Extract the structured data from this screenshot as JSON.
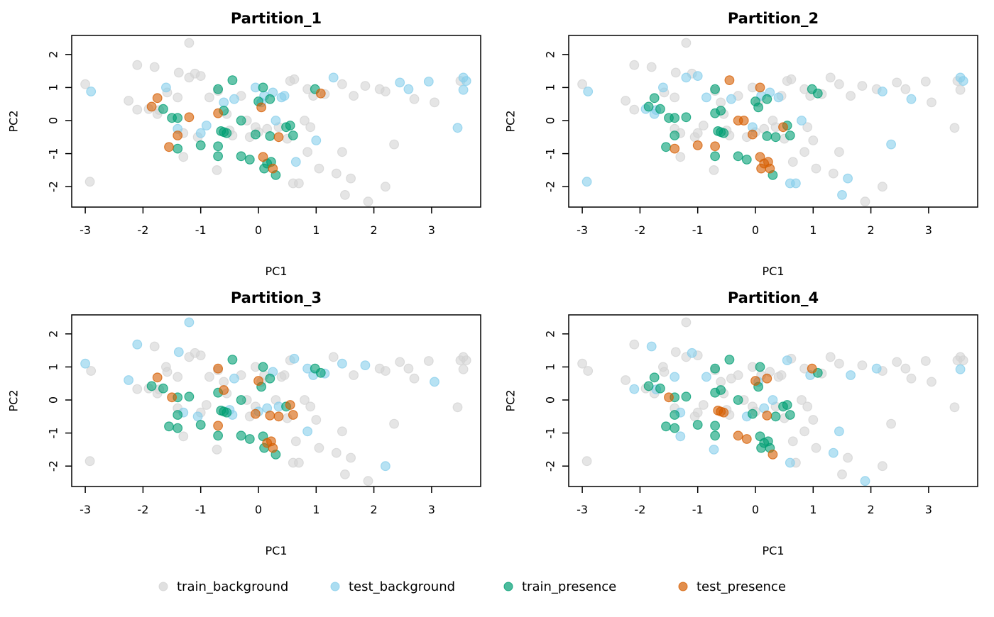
{
  "chart_data": {
    "type": "scatter",
    "layout": "2x2 facets",
    "xlabel": "PC1",
    "ylabel": "PC2",
    "xlim": [
      -3.2,
      3.9
    ],
    "ylim": [
      -2.6,
      2.6
    ],
    "xticks": [
      -3,
      -2,
      -1,
      0,
      1,
      2,
      3
    ],
    "yticks": [
      -2,
      -1,
      0,
      1,
      2
    ],
    "grid": false,
    "legend_position": "bottom",
    "classes": [
      {
        "name": "train_background",
        "color": "#D3D3D3"
      },
      {
        "name": "test_background",
        "color": "#87CEEB"
      },
      {
        "name": "train_presence",
        "color": "#009E73"
      },
      {
        "name": "test_presence",
        "color": "#D55E00"
      }
    ],
    "points": [
      [
        -3.0,
        1.1
      ],
      [
        -2.9,
        0.88
      ],
      [
        -2.92,
        -1.85
      ],
      [
        -2.25,
        0.6
      ],
      [
        -2.1,
        1.68
      ],
      [
        -2.1,
        0.33
      ],
      [
        -1.9,
        0.35
      ],
      [
        -1.8,
        1.62
      ],
      [
        -1.75,
        0.2
      ],
      [
        -1.72,
        0.32
      ],
      [
        -1.6,
        1.0
      ],
      [
        -1.58,
        0.85
      ],
      [
        -1.4,
        0.7
      ],
      [
        -1.4,
        -0.25
      ],
      [
        -1.38,
        1.45
      ],
      [
        -1.3,
        -0.38
      ],
      [
        -1.3,
        -1.1
      ],
      [
        -1.2,
        2.35
      ],
      [
        -1.2,
        1.3
      ],
      [
        -1.1,
        1.42
      ],
      [
        -1.05,
        -0.5
      ],
      [
        -1.0,
        1.35
      ],
      [
        -1.0,
        -0.38
      ],
      [
        -0.9,
        -0.15
      ],
      [
        -0.85,
        0.7
      ],
      [
        -0.72,
        -1.5
      ],
      [
        -0.7,
        0.9
      ],
      [
        -0.6,
        0.55
      ],
      [
        -0.55,
        0.2
      ],
      [
        -0.5,
        -0.3
      ],
      [
        -0.45,
        -0.45
      ],
      [
        -0.42,
        0.65
      ],
      [
        -0.3,
        0.75
      ],
      [
        -0.2,
        0.0
      ],
      [
        -0.15,
        -0.5
      ],
      [
        -0.05,
        1.0
      ],
      [
        -0.05,
        -0.2
      ],
      [
        0.0,
        -0.35
      ],
      [
        0.05,
        0.55
      ],
      [
        0.1,
        0.75
      ],
      [
        0.15,
        -0.25
      ],
      [
        0.25,
        0.85
      ],
      [
        0.3,
        0.0
      ],
      [
        0.35,
        -0.2
      ],
      [
        0.4,
        0.7
      ],
      [
        0.45,
        0.75
      ],
      [
        0.5,
        -0.55
      ],
      [
        0.55,
        1.2
      ],
      [
        0.6,
        -1.9
      ],
      [
        0.62,
        1.25
      ],
      [
        0.65,
        -1.25
      ],
      [
        0.7,
        -1.9
      ],
      [
        0.8,
        0.0
      ],
      [
        0.85,
        0.95
      ],
      [
        0.85,
        -0.95
      ],
      [
        0.9,
        -0.2
      ],
      [
        0.95,
        0.75
      ],
      [
        1.0,
        -0.6
      ],
      [
        1.05,
        -1.45
      ],
      [
        1.15,
        0.8
      ],
      [
        1.3,
        1.3
      ],
      [
        1.35,
        -1.6
      ],
      [
        1.45,
        1.1
      ],
      [
        1.45,
        -0.95
      ],
      [
        1.5,
        -2.25
      ],
      [
        1.6,
        -1.75
      ],
      [
        1.65,
        0.75
      ],
      [
        1.85,
        1.05
      ],
      [
        1.9,
        -2.45
      ],
      [
        2.1,
        0.95
      ],
      [
        2.2,
        0.88
      ],
      [
        2.2,
        -2.0
      ],
      [
        2.35,
        -0.72
      ],
      [
        2.45,
        1.15
      ],
      [
        2.6,
        0.95
      ],
      [
        2.7,
        0.65
      ],
      [
        2.95,
        1.18
      ],
      [
        3.05,
        0.55
      ],
      [
        3.45,
        -0.22
      ],
      [
        3.5,
        1.2
      ],
      [
        3.55,
        1.3
      ],
      [
        3.55,
        0.93
      ],
      [
        3.6,
        1.2
      ],
      [
        -1.85,
        0.42
      ],
      [
        -1.75,
        0.68
      ],
      [
        -1.65,
        0.35
      ],
      [
        -1.5,
        0.08
      ],
      [
        -1.4,
        0.08
      ],
      [
        -1.4,
        -0.45
      ],
      [
        -1.55,
        -0.8
      ],
      [
        -1.4,
        -0.85
      ],
      [
        -1.2,
        0.1
      ],
      [
        -1.0,
        -0.75
      ],
      [
        -0.7,
        0.95
      ],
      [
        -0.7,
        0.22
      ],
      [
        -0.7,
        -0.78
      ],
      [
        -0.7,
        -1.08
      ],
      [
        -0.65,
        -0.32
      ],
      [
        -0.6,
        -0.35
      ],
      [
        -0.6,
        0.3
      ],
      [
        -0.55,
        -0.38
      ],
      [
        -0.45,
        1.22
      ],
      [
        -0.3,
        0.0
      ],
      [
        -0.3,
        -1.08
      ],
      [
        -0.15,
        -1.18
      ],
      [
        -0.05,
        -0.42
      ],
      [
        0.0,
        0.58
      ],
      [
        0.05,
        0.4
      ],
      [
        0.08,
        1.0
      ],
      [
        0.08,
        -1.1
      ],
      [
        0.1,
        -1.45
      ],
      [
        0.15,
        -1.3
      ],
      [
        0.2,
        0.65
      ],
      [
        0.2,
        -0.47
      ],
      [
        0.22,
        -1.25
      ],
      [
        0.25,
        -1.45
      ],
      [
        0.3,
        -1.65
      ],
      [
        0.35,
        -0.5
      ],
      [
        0.48,
        -0.2
      ],
      [
        0.55,
        -0.15
      ],
      [
        0.6,
        -0.45
      ],
      [
        0.98,
        0.95
      ],
      [
        1.08,
        0.82
      ]
    ],
    "panels": [
      {
        "title": "Partition_1",
        "classes": [
          0,
          1,
          0,
          0,
          0,
          0,
          0,
          0,
          0,
          0,
          1,
          0,
          0,
          1,
          0,
          0,
          0,
          0,
          0,
          0,
          0,
          0,
          1,
          1,
          0,
          0,
          0,
          1,
          0,
          0,
          0,
          1,
          0,
          0,
          0,
          1,
          0,
          0,
          1,
          1,
          0,
          1,
          1,
          0,
          1,
          1,
          0,
          0,
          0,
          0,
          1,
          0,
          0,
          0,
          0,
          0,
          0,
          1,
          0,
          0,
          1,
          0,
          0,
          0,
          0,
          0,
          0,
          0,
          0,
          0,
          0,
          0,
          0,
          1,
          1,
          0,
          1,
          0,
          1,
          0,
          1,
          1,
          1,
          3,
          3,
          2,
          2,
          2,
          3,
          3,
          2,
          3,
          2,
          2,
          3,
          2,
          2,
          2,
          2,
          2,
          2,
          2,
          2,
          2,
          2,
          2,
          2,
          3,
          2,
          3,
          2,
          2,
          2,
          2,
          2,
          3,
          2,
          3,
          2,
          2,
          2,
          2,
          3
        ]
      },
      {
        "title": "Partition_2",
        "classes": [
          0,
          1,
          1,
          0,
          0,
          0,
          1,
          0,
          1,
          1,
          1,
          0,
          0,
          0,
          0,
          0,
          0,
          0,
          1,
          0,
          0,
          1,
          0,
          0,
          1,
          0,
          0,
          0,
          0,
          0,
          0,
          1,
          0,
          3,
          0,
          0,
          1,
          0,
          0,
          1,
          0,
          1,
          0,
          0,
          1,
          0,
          0,
          0,
          1,
          0,
          0,
          1,
          1,
          0,
          0,
          0,
          0,
          0,
          0,
          0,
          0,
          0,
          0,
          0,
          1,
          1,
          0,
          0,
          0,
          0,
          1,
          0,
          1,
          0,
          0,
          1,
          0,
          0,
          0,
          0,
          1,
          0,
          1,
          2,
          2,
          2,
          2,
          2,
          2,
          2,
          3,
          2,
          3,
          2,
          2,
          3,
          2,
          2,
          2,
          2,
          2,
          3,
          3,
          2,
          2,
          3,
          2,
          2,
          3,
          3,
          3,
          3,
          2,
          2,
          3,
          3,
          2,
          2,
          3,
          2,
          2,
          2,
          2
        ]
      },
      {
        "title": "Partition_3",
        "classes": [
          1,
          0,
          0,
          1,
          1,
          0,
          0,
          0,
          0,
          0,
          0,
          0,
          0,
          0,
          1,
          1,
          0,
          1,
          0,
          0,
          1,
          0,
          0,
          0,
          0,
          0,
          0,
          0,
          0,
          1,
          1,
          1,
          0,
          0,
          0,
          0,
          0,
          1,
          0,
          0,
          1,
          1,
          0,
          1,
          0,
          0,
          0,
          0,
          0,
          1,
          0,
          0,
          0,
          1,
          1,
          0,
          1,
          0,
          0,
          1,
          0,
          0,
          1,
          0,
          0,
          0,
          0,
          1,
          0,
          0,
          0,
          1,
          0,
          0,
          0,
          0,
          0,
          1,
          0,
          0,
          0,
          0,
          0,
          2,
          3,
          2,
          3,
          2,
          2,
          2,
          2,
          2,
          2,
          3,
          2,
          3,
          2,
          2,
          2,
          3,
          2,
          2,
          2,
          2,
          2,
          3,
          3,
          2,
          2,
          2,
          2,
          3,
          2,
          3,
          3,
          3,
          2,
          3,
          2,
          3,
          3,
          2,
          2
        ]
      },
      {
        "title": "Partition_4",
        "classes": [
          0,
          0,
          0,
          0,
          0,
          1,
          0,
          1,
          0,
          1,
          0,
          0,
          1,
          0,
          0,
          1,
          1,
          0,
          0,
          1,
          0,
          0,
          0,
          0,
          1,
          1,
          0,
          0,
          0,
          0,
          0,
          0,
          0,
          0,
          1,
          0,
          0,
          0,
          1,
          0,
          1,
          0,
          1,
          0,
          0,
          0,
          0,
          1,
          1,
          0,
          0,
          0,
          0,
          0,
          0,
          0,
          1,
          0,
          0,
          0,
          0,
          1,
          0,
          1,
          0,
          0,
          1,
          0,
          1,
          1,
          0,
          0,
          0,
          0,
          0,
          0,
          0,
          0,
          0,
          0,
          0,
          1,
          0,
          2,
          2,
          2,
          3,
          2,
          2,
          2,
          2,
          2,
          2,
          2,
          2,
          2,
          2,
          3,
          3,
          2,
          3,
          2,
          2,
          3,
          3,
          2,
          3,
          2,
          2,
          2,
          2,
          2,
          3,
          3,
          2,
          2,
          3,
          2,
          2,
          2,
          2,
          3,
          2
        ]
      }
    ],
    "legend": [
      "train_background",
      "test_background",
      "train_presence",
      "test_presence"
    ]
  }
}
